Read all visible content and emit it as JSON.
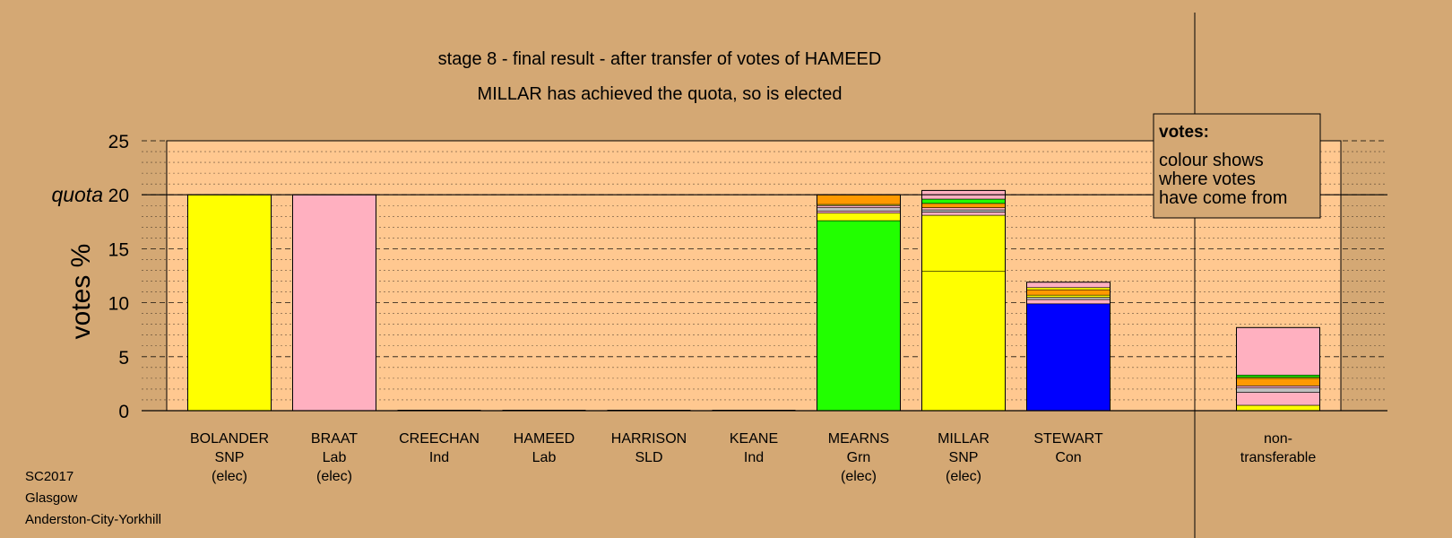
{
  "chart_data": {
    "type": "bar",
    "stacked": true,
    "title": "stage 8 - final result - after transfer of votes of HAMEED",
    "subtitle": "MILLAR has achieved the quota, so is elected",
    "ylabel": "votes %",
    "quota_label": "quota",
    "quota": 20,
    "ylim": [
      0,
      25
    ],
    "yticks": [
      "0",
      "5",
      "10",
      "15",
      "20",
      "25"
    ],
    "grid": true,
    "legend": {
      "title": "votes:",
      "lines": [
        "colour shows",
        "where votes",
        "have come from"
      ],
      "placement": "top-right"
    },
    "categories": [
      {
        "name": "BOLANDER",
        "party": "SNP",
        "status": "(elec)"
      },
      {
        "name": "BRAAT",
        "party": "Lab",
        "status": "(elec)"
      },
      {
        "name": "CREECHAN",
        "party": "Ind",
        "status": ""
      },
      {
        "name": "HAMEED",
        "party": "Lab",
        "status": ""
      },
      {
        "name": "HARRISON",
        "party": "SLD",
        "status": ""
      },
      {
        "name": "KEANE",
        "party": "Ind",
        "status": ""
      },
      {
        "name": "MEARNS",
        "party": "Grn",
        "status": "(elec)"
      },
      {
        "name": "MILLAR",
        "party": "SNP",
        "status": "(elec)"
      },
      {
        "name": "STEWART",
        "party": "Con",
        "status": ""
      },
      {
        "name": "non-",
        "party": "transferable",
        "status": ""
      }
    ],
    "stacks": [
      [
        {
          "value": 20.0,
          "color": "#ffff00"
        }
      ],
      [
        {
          "value": 20.0,
          "color": "#ffb0c0"
        }
      ],
      [],
      [],
      [],
      [],
      [
        {
          "value": 17.6,
          "color": "#22ff00"
        },
        {
          "value": 0.7,
          "color": "#ffff00"
        },
        {
          "value": 0.2,
          "color": "#ffb0c0"
        },
        {
          "value": 0.3,
          "color": "#c0c0c0"
        },
        {
          "value": 0.2,
          "color": "#ffb0c0"
        },
        {
          "value": 0.1,
          "color": "#ffff00"
        },
        {
          "value": 0.9,
          "color": "#ff9900"
        }
      ],
      [
        {
          "value": 12.9,
          "color": "#ffff00"
        },
        {
          "value": 5.2,
          "color": "#ffff00"
        },
        {
          "value": 0.3,
          "color": "#ffb0c0"
        },
        {
          "value": 0.2,
          "color": "#c0c0c0"
        },
        {
          "value": 0.2,
          "color": "#ffb0c0"
        },
        {
          "value": 0.4,
          "color": "#ff9900"
        },
        {
          "value": 0.4,
          "color": "#22ff00"
        },
        {
          "value": 0.8,
          "color": "#ffb0c0"
        }
      ],
      [
        {
          "value": 9.9,
          "color": "#0000ff"
        },
        {
          "value": 0.4,
          "color": "#ffb0c0"
        },
        {
          "value": 0.2,
          "color": "#c0c0c0"
        },
        {
          "value": 0.2,
          "color": "#ffff00"
        },
        {
          "value": 0.5,
          "color": "#ff9900"
        },
        {
          "value": 0.2,
          "color": "#ffff00"
        },
        {
          "value": 0.5,
          "color": "#ffb0c0"
        }
      ],
      [
        {
          "value": 0.5,
          "color": "#ffff00"
        },
        {
          "value": 1.2,
          "color": "#ffb0c0"
        },
        {
          "value": 0.4,
          "color": "#c0c0c0"
        },
        {
          "value": 0.2,
          "color": "#ffb0c0"
        },
        {
          "value": 0.7,
          "color": "#ff9900"
        },
        {
          "value": 0.1,
          "color": "#ffff00"
        },
        {
          "value": 0.2,
          "color": "#22ff00"
        },
        {
          "value": 4.4,
          "color": "#ffb0c0"
        }
      ]
    ]
  },
  "footer": {
    "lines": [
      "SC2017",
      "Glasgow",
      "Anderston-City-Yorkhill"
    ]
  },
  "colors": {
    "background": "#d4a874",
    "plot_background": "#ffc890"
  }
}
